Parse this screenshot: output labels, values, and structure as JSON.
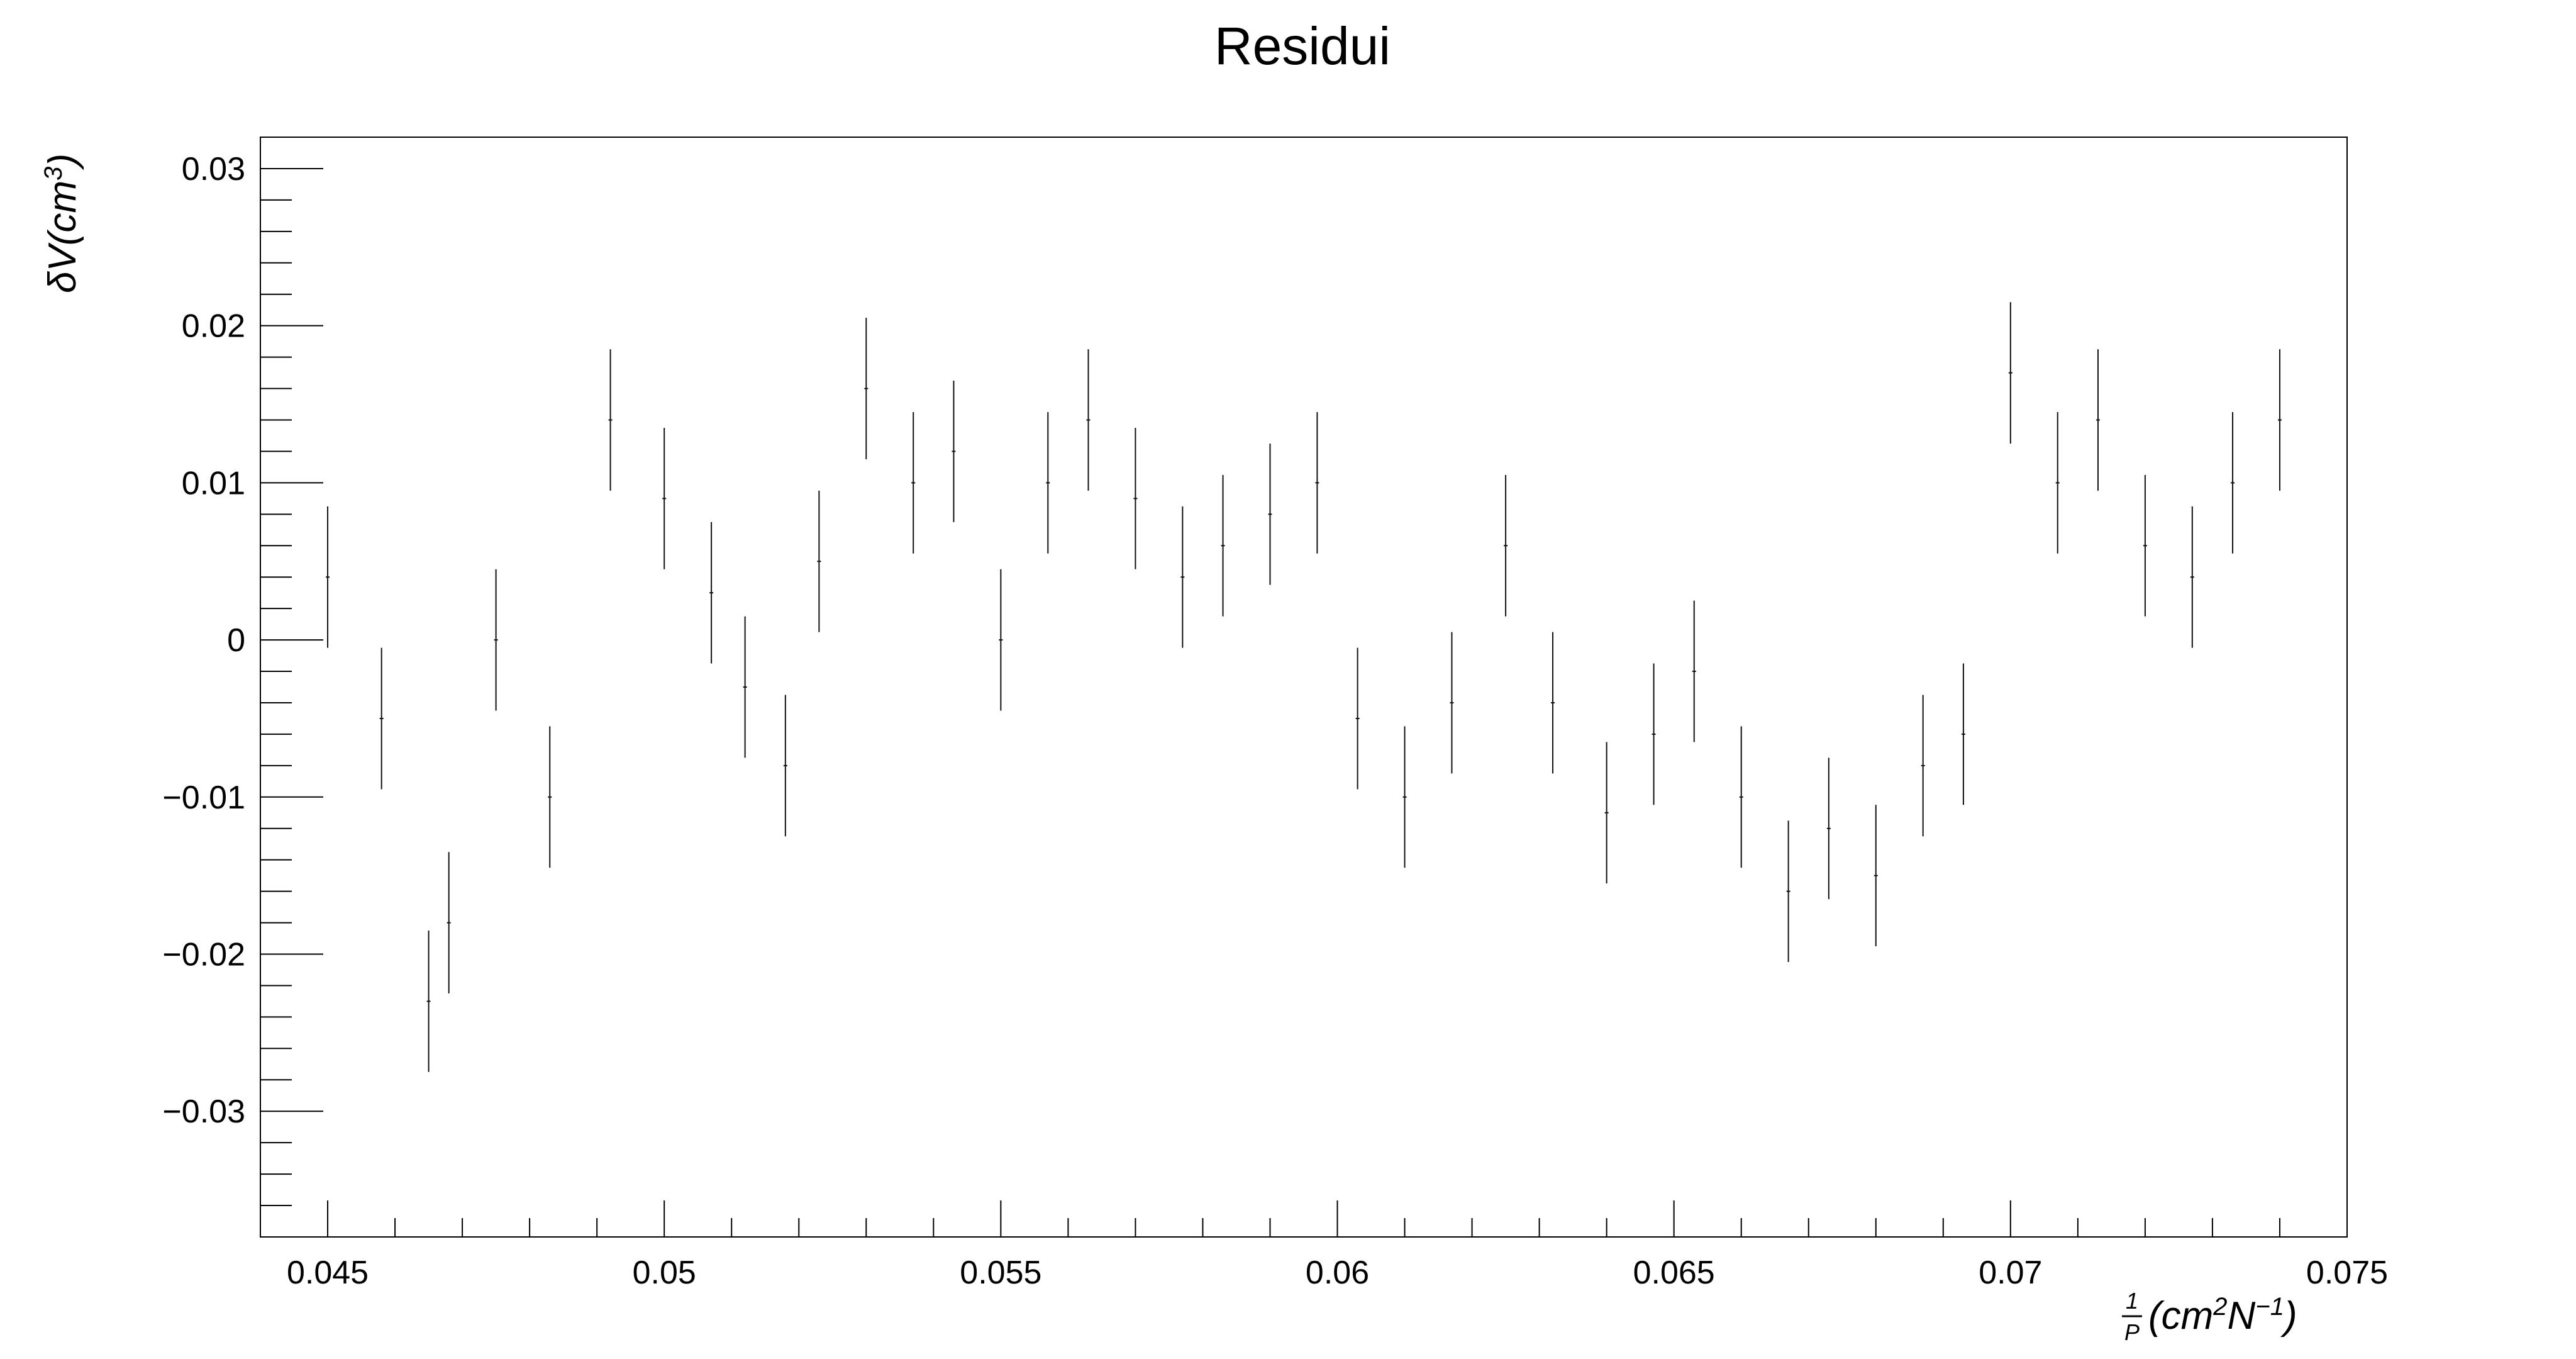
{
  "chart_data": {
    "type": "scatter",
    "title": "Residui",
    "xlim": [
      0.044,
      0.075
    ],
    "ylim": [
      -0.038,
      0.032
    ],
    "x_ticks": [
      "0.045",
      "0.05",
      "0.055",
      "0.06",
      "0.065",
      "0.07",
      "0.075"
    ],
    "x_tick_values": [
      0.045,
      0.05,
      0.055,
      0.06,
      0.065,
      0.07,
      0.075
    ],
    "y_ticks": [
      "0.03",
      "0.02",
      "0.01",
      "0",
      "−0.01",
      "−0.02",
      "−0.03"
    ],
    "y_tick_values": [
      0.03,
      0.02,
      0.01,
      0,
      -0.01,
      -0.02,
      -0.03
    ],
    "ylabel": {
      "prefix": "δV(cm",
      "sup": "3",
      "suffix": ")"
    },
    "xlabel": {
      "frac_num": "1",
      "frac_den": "P",
      "prefix": "(cm",
      "sup1": "2",
      "mid": "N",
      "sup2": "−1",
      "suffix": ")"
    },
    "error_half_width": 0.0045,
    "grid": false,
    "series": [
      {
        "x": [
          0.045,
          0.0458,
          0.0465,
          0.0468,
          0.0475,
          0.0483,
          0.0492,
          0.05,
          0.0507,
          0.0512,
          0.0518,
          0.0523,
          0.053,
          0.0537,
          0.0543,
          0.055,
          0.0557,
          0.0563,
          0.057,
          0.0577,
          0.0583,
          0.059,
          0.0597,
          0.0603,
          0.061,
          0.0617,
          0.0625,
          0.0632,
          0.064,
          0.0647,
          0.0653,
          0.066,
          0.0667,
          0.0673,
          0.068,
          0.0687,
          0.0693,
          0.07,
          0.0707,
          0.0713,
          0.072,
          0.0727,
          0.0733,
          0.074
        ],
        "y": [
          0.004,
          -0.005,
          -0.023,
          -0.018,
          0.0,
          -0.01,
          0.014,
          0.009,
          0.003,
          -0.003,
          -0.008,
          0.005,
          0.016,
          0.01,
          0.012,
          0.0,
          0.01,
          0.014,
          0.009,
          0.004,
          0.006,
          0.008,
          0.01,
          -0.005,
          -0.01,
          -0.004,
          0.006,
          -0.004,
          -0.011,
          -0.006,
          -0.002,
          -0.01,
          -0.016,
          -0.012,
          -0.015,
          -0.008,
          -0.006,
          0.017,
          0.01,
          0.014,
          0.006,
          0.004,
          0.01,
          0.014
        ]
      }
    ]
  }
}
